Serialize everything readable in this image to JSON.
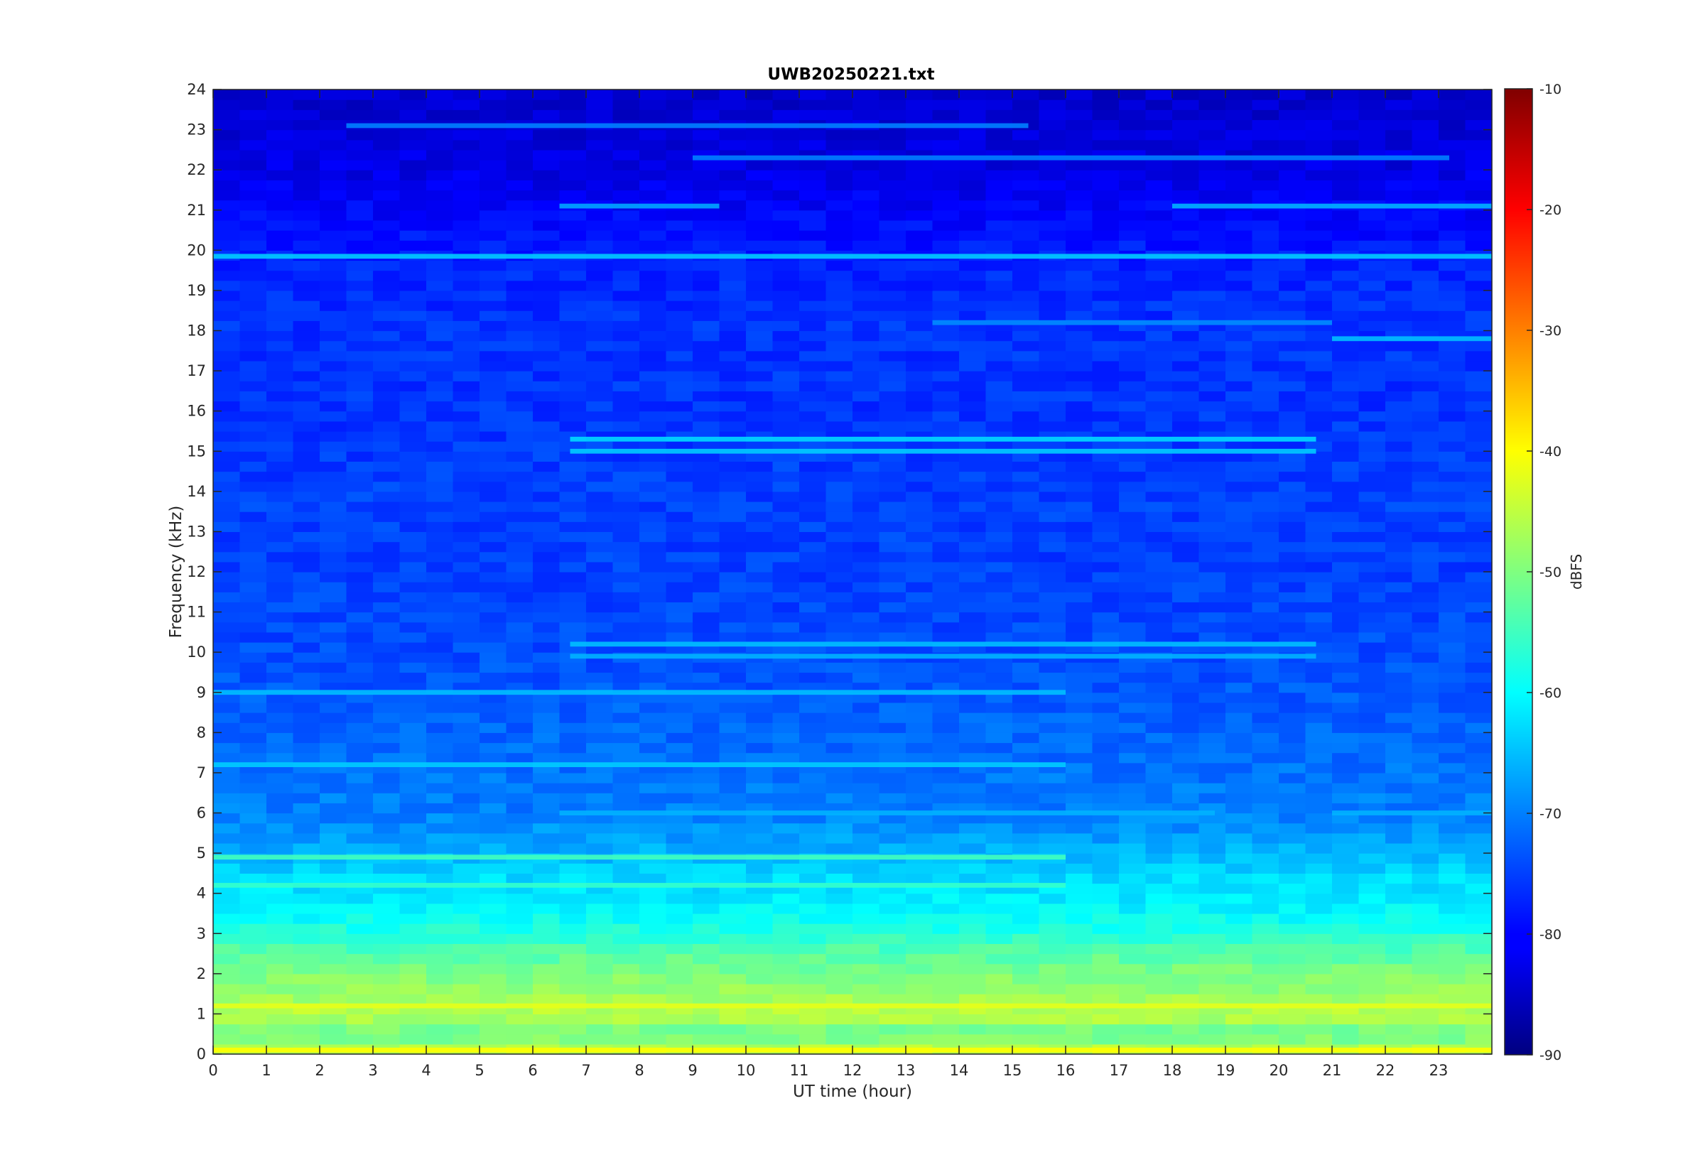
{
  "chart_data": {
    "type": "heatmap",
    "title": "UWB20250221.txt",
    "xlabel": "UT time (hour)",
    "ylabel": "Frequency (kHz)",
    "colorbar_label": "dBFS",
    "xlim": [
      0,
      24
    ],
    "ylim": [
      0,
      24
    ],
    "clim": [
      -90,
      -10
    ],
    "x_ticks": [
      "0",
      "1",
      "2",
      "3",
      "4",
      "5",
      "6",
      "7",
      "8",
      "9",
      "10",
      "11",
      "12",
      "13",
      "14",
      "15",
      "16",
      "17",
      "18",
      "19",
      "20",
      "21",
      "22",
      "23"
    ],
    "y_ticks": [
      "0",
      "1",
      "2",
      "3",
      "4",
      "5",
      "6",
      "7",
      "8",
      "9",
      "10",
      "11",
      "12",
      "13",
      "14",
      "15",
      "16",
      "17",
      "18",
      "19",
      "20",
      "21",
      "22",
      "23",
      "24"
    ],
    "colorbar_ticks": [
      "-90",
      "-80",
      "-70",
      "-60",
      "-50",
      "-40",
      "-30",
      "-20",
      "-10"
    ],
    "colormap": "jet",
    "grid": false,
    "frequency_profile_dbfs": [
      {
        "f": 0.0,
        "level": -44
      },
      {
        "f": 0.5,
        "level": -52
      },
      {
        "f": 1.0,
        "level": -45
      },
      {
        "f": 1.5,
        "level": -48
      },
      {
        "f": 2.0,
        "level": -50
      },
      {
        "f": 2.5,
        "level": -53
      },
      {
        "f": 3.0,
        "level": -57
      },
      {
        "f": 3.5,
        "level": -60
      },
      {
        "f": 4.0,
        "level": -62
      },
      {
        "f": 4.5,
        "level": -63
      },
      {
        "f": 5.0,
        "level": -66
      },
      {
        "f": 6.0,
        "level": -70
      },
      {
        "f": 7.0,
        "level": -71
      },
      {
        "f": 8.0,
        "level": -72
      },
      {
        "f": 9.0,
        "level": -73
      },
      {
        "f": 10.0,
        "level": -74
      },
      {
        "f": 12.0,
        "level": -75
      },
      {
        "f": 14.0,
        "level": -75
      },
      {
        "f": 16.0,
        "level": -76
      },
      {
        "f": 18.0,
        "level": -76
      },
      {
        "f": 19.5,
        "level": -77
      },
      {
        "f": 20.5,
        "level": -79
      },
      {
        "f": 22.0,
        "level": -82
      },
      {
        "f": 24.0,
        "level": -84
      }
    ],
    "tone_lines": [
      {
        "f": 19.85,
        "t_start": 0,
        "t_end": 24,
        "level": -64
      },
      {
        "f": 23.1,
        "t_start": 2.5,
        "t_end": 15.3,
        "level": -70
      },
      {
        "f": 21.1,
        "t_start": 18.0,
        "t_end": 24,
        "level": -66
      },
      {
        "f": 21.1,
        "t_start": 6.5,
        "t_end": 9.5,
        "level": -67
      },
      {
        "f": 18.2,
        "t_start": 13.5,
        "t_end": 21.0,
        "level": -69
      },
      {
        "f": 22.3,
        "t_start": 9.0,
        "t_end": 23.2,
        "level": -70
      },
      {
        "f": 17.8,
        "t_start": 21.0,
        "t_end": 24,
        "level": -65
      },
      {
        "f": 15.3,
        "t_start": 6.7,
        "t_end": 20.7,
        "level": -63
      },
      {
        "f": 15.0,
        "t_start": 6.7,
        "t_end": 20.7,
        "level": -64
      },
      {
        "f": 10.2,
        "t_start": 6.7,
        "t_end": 20.7,
        "level": -65
      },
      {
        "f": 9.9,
        "t_start": 6.7,
        "t_end": 20.7,
        "level": -66
      },
      {
        "f": 6.0,
        "t_start": 6.5,
        "t_end": 18.8,
        "level": -66
      },
      {
        "f": 6.0,
        "t_start": 21.0,
        "t_end": 24,
        "level": -66
      },
      {
        "f": 9.0,
        "t_start": 0,
        "t_end": 16.0,
        "level": -65
      },
      {
        "f": 7.2,
        "t_start": 0,
        "t_end": 16.0,
        "level": -64
      },
      {
        "f": 4.9,
        "t_start": 0,
        "t_end": 16.0,
        "level": -55
      },
      {
        "f": 4.2,
        "t_start": 0,
        "t_end": 16.0,
        "level": -56
      },
      {
        "f": 1.2,
        "t_start": 0,
        "t_end": 24,
        "level": -42
      },
      {
        "f": 0.1,
        "t_start": 0,
        "t_end": 24,
        "level": -40
      }
    ]
  }
}
